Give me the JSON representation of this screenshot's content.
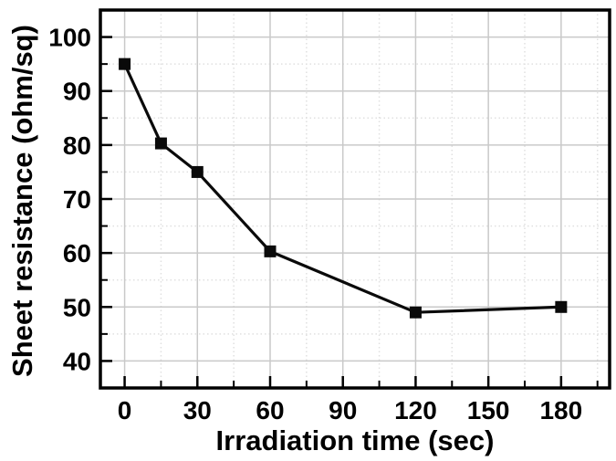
{
  "chart_data": {
    "type": "line",
    "title": "",
    "xlabel": "Irradiation time (sec)",
    "ylabel": "Sheet resistance (ohm/sq)",
    "series": [
      {
        "name": "sheet-resistance",
        "x": [
          0,
          15,
          30,
          60,
          120,
          180
        ],
        "y": [
          95,
          80.3,
          75,
          60.3,
          49,
          50
        ]
      }
    ],
    "xlim": [
      -10,
      200
    ],
    "ylim": [
      35,
      105
    ],
    "x_major_ticks": [
      0,
      30,
      60,
      90,
      120,
      150,
      180
    ],
    "x_minor_ticks": [
      15,
      45,
      75,
      105,
      135,
      165,
      195
    ],
    "y_major_ticks": [
      40,
      50,
      60,
      70,
      80,
      90,
      100
    ],
    "y_minor_ticks": [
      45,
      55,
      65,
      75,
      85,
      95
    ],
    "grid": {
      "major": "solid",
      "minor": "dotted"
    },
    "legend": "none",
    "marker": "square",
    "colors": {
      "line": "#0a0a0a",
      "marker": "#0a0a0a",
      "axis": "#000000",
      "text": "#000000",
      "major_grid": "#c9c9c9",
      "minor_grid": "#e0e0e0",
      "background": "#ffffff"
    }
  }
}
